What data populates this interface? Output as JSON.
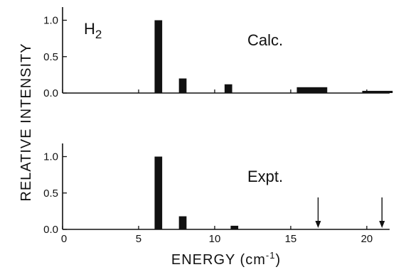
{
  "chart_data": [
    {
      "type": "bar",
      "panel": "top",
      "species_label": {
        "base": "H",
        "sub": "2"
      },
      "annotation": "Calc.",
      "ylim": [
        0,
        1.2
      ],
      "yticks": [
        {
          "value": 0.0,
          "label": "0.0"
        },
        {
          "value": 0.5,
          "label": "0.5"
        },
        {
          "value": 1.0,
          "label": "1.0"
        }
      ],
      "bars": [
        {
          "x": 6.3,
          "width": 0.5,
          "value": 1.0
        },
        {
          "x": 7.9,
          "width": 0.5,
          "value": 0.2
        },
        {
          "x": 10.9,
          "width": 0.5,
          "value": 0.12
        },
        {
          "x": 16.4,
          "width": 2.0,
          "value": 0.08
        },
        {
          "x": 20.7,
          "width": 2.0,
          "value": 0.03
        }
      ]
    },
    {
      "type": "bar",
      "panel": "bottom",
      "annotation": "Expt.",
      "ylim": [
        0,
        1.2
      ],
      "yticks": [
        {
          "value": 0.0,
          "label": "0.0"
        },
        {
          "value": 0.5,
          "label": "0.5"
        },
        {
          "value": 1.0,
          "label": "1.0"
        }
      ],
      "bars": [
        {
          "x": 6.3,
          "width": 0.5,
          "value": 1.0
        },
        {
          "x": 7.9,
          "width": 0.5,
          "value": 0.18
        },
        {
          "x": 11.3,
          "width": 0.5,
          "value": 0.05
        }
      ],
      "arrows_at_x": [
        16.8,
        21.0
      ]
    }
  ],
  "x_axis": {
    "title": "ENERGY (cm",
    "title_superscript": "-1",
    "title_close": ")",
    "xlim": [
      0,
      21.5
    ],
    "ticks": [
      {
        "value": 0,
        "label": "0"
      },
      {
        "value": 5,
        "label": "5"
      },
      {
        "value": 10,
        "label": "10"
      },
      {
        "value": 15,
        "label": "15"
      },
      {
        "value": 20,
        "label": "20"
      }
    ]
  },
  "y_axis": {
    "title": "RELATIVE   INTENSITY"
  }
}
